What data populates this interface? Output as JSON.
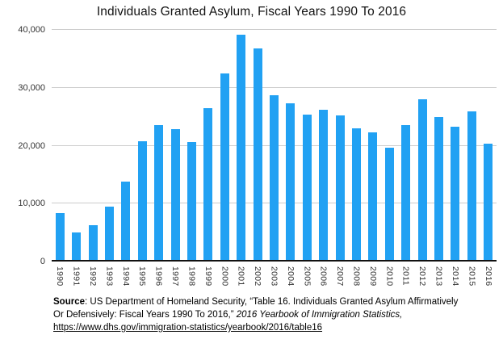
{
  "chart_data": {
    "type": "bar",
    "title": "Individuals Granted Asylum, Fiscal Years 1990 To 2016",
    "categories": [
      "1990",
      "1991",
      "1992",
      "1993",
      "1994",
      "1995",
      "1996",
      "1997",
      "1998",
      "1999",
      "2000",
      "2001",
      "2002",
      "2003",
      "2004",
      "2005",
      "2006",
      "2007",
      "2008",
      "2009",
      "2010",
      "2011",
      "2012",
      "2013",
      "2014",
      "2015",
      "2016"
    ],
    "values": [
      8400,
      5000,
      6300,
      9500,
      13800,
      20700,
      23500,
      22800,
      20600,
      26500,
      32500,
      39200,
      36800,
      28700,
      27300,
      25300,
      26200,
      25200,
      23000,
      22300,
      19700,
      23600,
      28000,
      24900,
      23300,
      25900,
      20400
    ],
    "xlabel": "",
    "ylabel": "",
    "ylim": [
      0,
      40000
    ],
    "yticks": [
      0,
      10000,
      20000,
      30000,
      40000
    ],
    "ytick_labels": [
      "0",
      "10,000",
      "20,000",
      "30,000",
      "40,000"
    ],
    "grid": true,
    "legend": false,
    "bar_color": "#21a1f3",
    "grid_color": "#cccccc",
    "axis_color": "#111111"
  },
  "footer": {
    "line1": {
      "bold": "Source",
      "text": ": US Department of Homeland Security, “Table 16. Individuals Granted Asylum Affirmatively"
    },
    "line2": {
      "text": "Or Defensively: Fiscal Years 1990 To 2016,” ",
      "italic": "2016 Yearbook of Immigration Statistics,"
    },
    "line3": {
      "link": "https://www.dhs.gov/immigration-statistics/yearbook/2016/table16"
    }
  }
}
